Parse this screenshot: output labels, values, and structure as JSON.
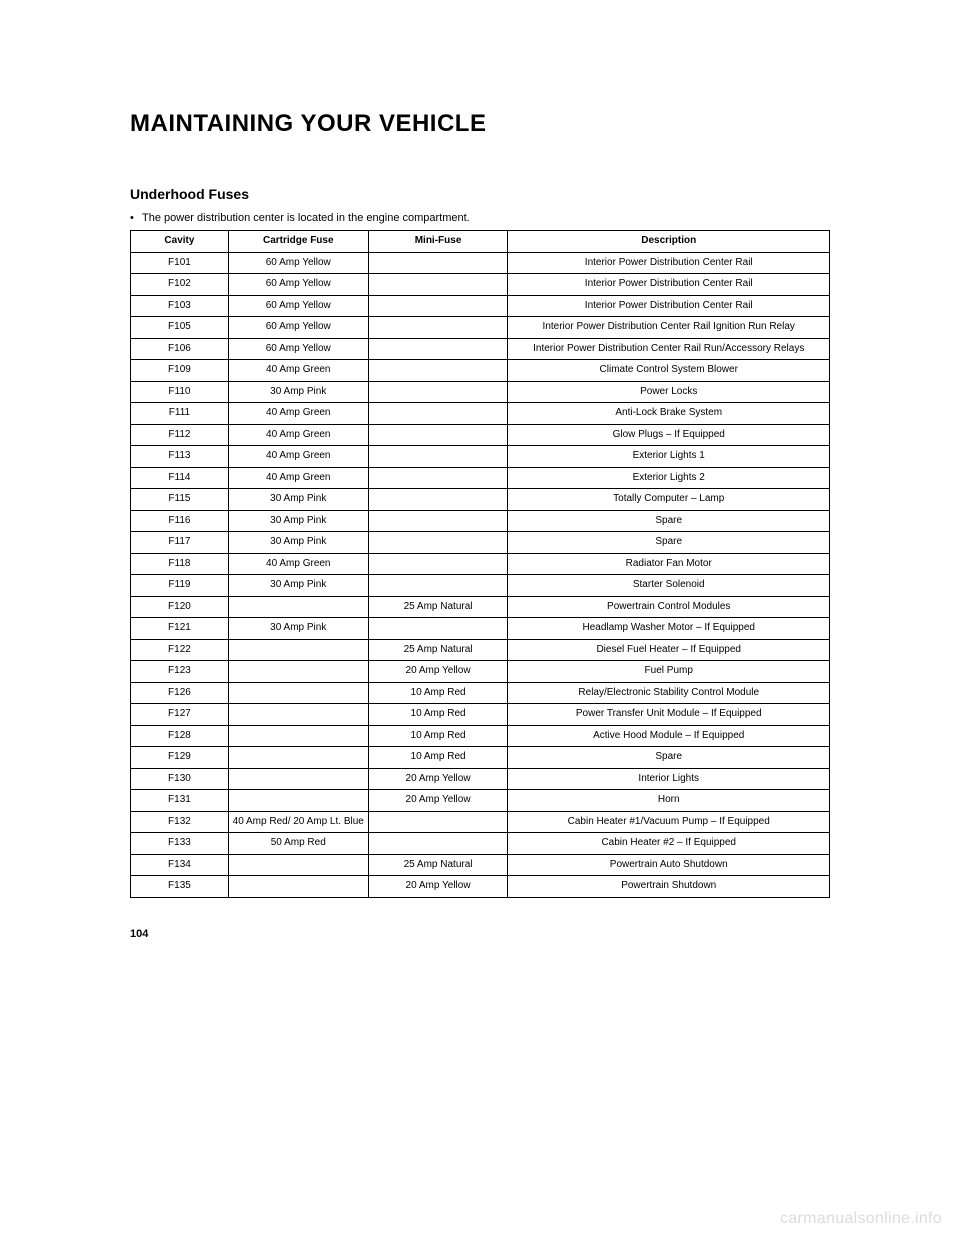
{
  "title": "MAINTAINING YOUR VEHICLE",
  "section_heading": "Underhood Fuses",
  "intro_text": "The power distribution center is located in the engine compartment.",
  "page_number": "104",
  "watermark": "carmanualsonline.info",
  "table": {
    "type": "table",
    "background_color": "#ffffff",
    "border_color": "#000000",
    "header_fontsize": 10,
    "body_fontsize": 10,
    "columns": [
      "Cavity",
      "Cartridge Fuse",
      "Mini-Fuse",
      "Description"
    ],
    "col_widths_pct": [
      14,
      20,
      20,
      46
    ],
    "rows": [
      [
        "F101",
        "60 Amp Yellow",
        "",
        "Interior Power Distribution Center Rail"
      ],
      [
        "F102",
        "60 Amp Yellow",
        "",
        "Interior Power Distribution Center Rail"
      ],
      [
        "F103",
        "60 Amp Yellow",
        "",
        "Interior Power Distribution Center Rail"
      ],
      [
        "F105",
        "60 Amp Yellow",
        "",
        "Interior Power Distribution Center Rail Ignition Run Relay"
      ],
      [
        "F106",
        "60 Amp Yellow",
        "",
        "Interior Power Distribution Center Rail Run/Accessory Relays"
      ],
      [
        "F109",
        "40 Amp Green",
        "",
        "Climate Control System Blower"
      ],
      [
        "F110",
        "30 Amp Pink",
        "",
        "Power Locks"
      ],
      [
        "F111",
        "40 Amp Green",
        "",
        "Anti-Lock Brake System"
      ],
      [
        "F112",
        "40 Amp Green",
        "",
        "Glow Plugs – If Equipped"
      ],
      [
        "F113",
        "40 Amp Green",
        "",
        "Exterior Lights 1"
      ],
      [
        "F114",
        "40 Amp Green",
        "",
        "Exterior Lights 2"
      ],
      [
        "F115",
        "30 Amp Pink",
        "",
        "Totally Computer – Lamp"
      ],
      [
        "F116",
        "30 Amp Pink",
        "",
        "Spare"
      ],
      [
        "F117",
        "30 Amp Pink",
        "",
        "Spare"
      ],
      [
        "F118",
        "40 Amp Green",
        "",
        "Radiator Fan Motor"
      ],
      [
        "F119",
        "30 Amp Pink",
        "",
        "Starter Solenoid"
      ],
      [
        "F120",
        "",
        "25 Amp Natural",
        "Powertrain Control Modules"
      ],
      [
        "F121",
        "30 Amp Pink",
        "",
        "Headlamp Washer Motor – If Equipped"
      ],
      [
        "F122",
        "",
        "25 Amp Natural",
        "Diesel Fuel Heater – If Equipped"
      ],
      [
        "F123",
        "",
        "20 Amp Yellow",
        "Fuel Pump"
      ],
      [
        "F126",
        "",
        "10 Amp Red",
        "Relay/Electronic Stability Control Module"
      ],
      [
        "F127",
        "",
        "10 Amp Red",
        "Power Transfer Unit Module – If Equipped"
      ],
      [
        "F128",
        "",
        "10 Amp Red",
        "Active Hood Module – If Equipped"
      ],
      [
        "F129",
        "",
        "10 Amp Red",
        "Spare"
      ],
      [
        "F130",
        "",
        "20 Amp Yellow",
        "Interior Lights"
      ],
      [
        "F131",
        "",
        "20 Amp Yellow",
        "Horn"
      ],
      [
        "F132",
        "40 Amp Red/ 20 Amp Lt. Blue",
        "",
        "Cabin Heater #1/Vacuum Pump – If Equipped"
      ],
      [
        "F133",
        "50 Amp Red",
        "",
        "Cabin Heater #2 – If Equipped"
      ],
      [
        "F134",
        "",
        "25 Amp Natural",
        "Powertrain Auto Shutdown"
      ],
      [
        "F135",
        "",
        "20 Amp Yellow",
        "Powertrain Shutdown"
      ]
    ]
  }
}
